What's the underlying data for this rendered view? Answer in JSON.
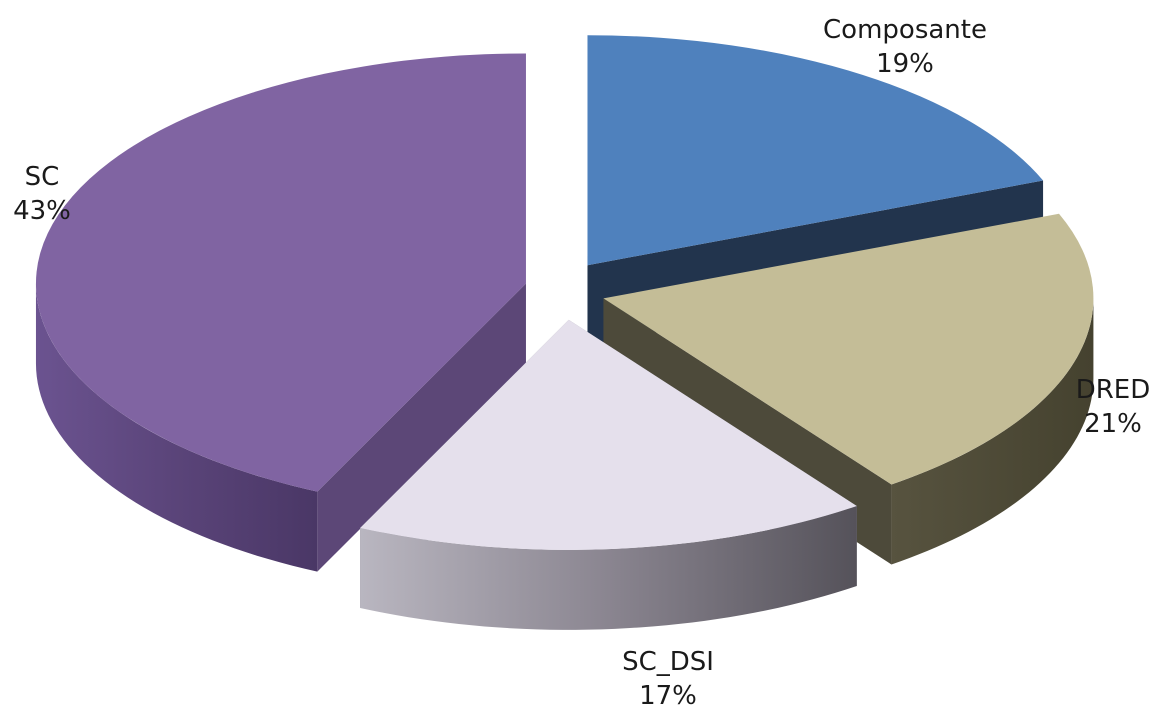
{
  "chart_data": {
    "type": "pie",
    "style": "3d-exploded",
    "title": "",
    "legend": "none",
    "slices": [
      {
        "name": "Composante",
        "value": 19,
        "label_pct": "19%",
        "color": "#4f81bd",
        "side_color": "#22344d"
      },
      {
        "name": "DRED",
        "value": 21,
        "label_pct": "21%",
        "color": "#c4bd97",
        "side_color": "#4d4a3a"
      },
      {
        "name": "SC_DSI",
        "value": 17,
        "label_pct": "17%",
        "color": "#e5e0ec",
        "side_color": "#8c8c96"
      },
      {
        "name": "SC",
        "value": 43,
        "label_pct": "43%",
        "color": "#8064a2",
        "side_color": "#5c4777"
      }
    ]
  }
}
